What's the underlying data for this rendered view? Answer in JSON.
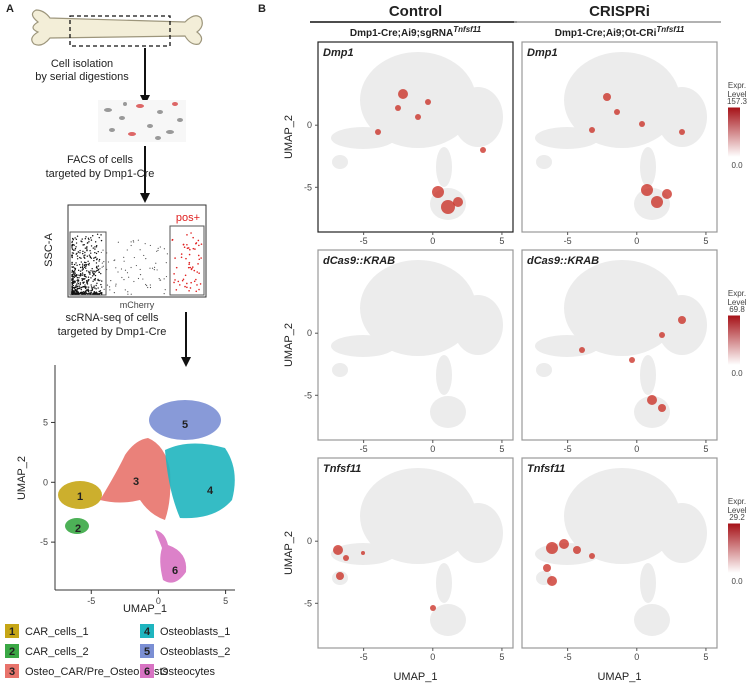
{
  "panel_a": {
    "label": "A",
    "step_1": [
      "Cell isolation",
      "by serial digestions"
    ],
    "step_2": [
      "FACS of cells",
      "targeted by Dmp1-Cre"
    ],
    "step_3": [
      "scRNA-seq of cells",
      "targeted by Dmp1-Cre"
    ],
    "facs": {
      "y_label": "SSC-A",
      "x_label": "mCherry",
      "gate_label": "pos+"
    },
    "umap": {
      "xlim": [
        -7.7,
        5.7
      ],
      "ylim": [
        -9,
        9.8
      ],
      "xticks": [
        -5,
        0,
        5
      ],
      "yticks": [
        -5,
        0,
        5
      ],
      "x_label": "UMAP_1",
      "y_label": "UMAP_2",
      "clusters": [
        {
          "id": 1,
          "name": "CAR_cells_1",
          "color": "#c6a616"
        },
        {
          "id": 2,
          "name": "CAR_cells_2",
          "color": "#3aa845"
        },
        {
          "id": 3,
          "name": "Osteo_CAR/Pre_Osteoblasts",
          "color": "#e8736b"
        },
        {
          "id": 4,
          "name": "Osteoblasts_1",
          "color": "#1fb5bf"
        },
        {
          "id": 5,
          "name": "Osteoblasts_2",
          "color": "#7b8fd4"
        },
        {
          "id": 6,
          "name": "Osteocytes",
          "color": "#d873c3"
        }
      ]
    }
  },
  "panel_b": {
    "label": "B",
    "columns": [
      {
        "title": "Control",
        "genotype": "Dmp1-Cre;Ai9;sgRNA",
        "genotype_sup": "Tnfsf11"
      },
      {
        "title": "CRISPRi",
        "genotype": "Dmp1-Cre;Ai9;Ot-CRi",
        "genotype_sup": "Tnfsf11"
      }
    ],
    "rows": [
      {
        "gene": "Dmp1",
        "legend_title": [
          "Expr.",
          "Level"
        ],
        "scale_ticks": [
          {
            "value": 0,
            "label": "0.0"
          },
          157.3
        ]
      },
      {
        "gene": "dCas9::KRAB",
        "legend_title": [
          "Expr.",
          "Level"
        ],
        "scale_ticks": [
          {
            "value": 0,
            "label": "0.0"
          },
          69.8
        ]
      },
      {
        "gene": "Tnfsf11",
        "legend_title": [
          "Expr.",
          "Level"
        ],
        "scale_ticks": [
          {
            "value": 0,
            "label": "0.0"
          },
          29.2
        ]
      }
    ],
    "xlim": [
      -8.3,
      5.8
    ],
    "ylim": [
      -8.6,
      6.7
    ],
    "xticks": [
      -5,
      0,
      5
    ],
    "yticks": [
      -5,
      0
    ],
    "x_label": "UMAP_1",
    "y_label": "UMAP_2"
  }
}
